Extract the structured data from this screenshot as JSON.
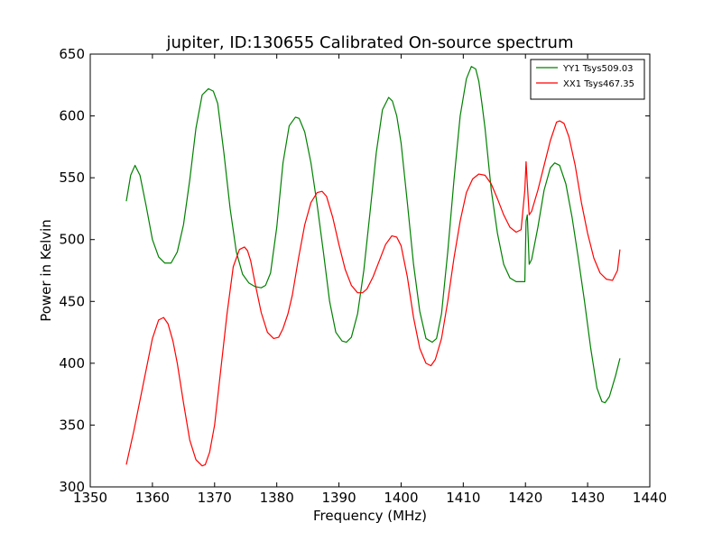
{
  "chart_data": {
    "type": "line",
    "title": "jupiter, ID:130655 Calibrated On-source spectrum",
    "xlabel": "Frequency (MHz)",
    "ylabel": "Power in Kelvin",
    "xlim": [
      1350,
      1440
    ],
    "ylim": [
      300,
      650
    ],
    "xticks": [
      1350,
      1360,
      1370,
      1380,
      1390,
      1400,
      1410,
      1420,
      1430,
      1440
    ],
    "yticks": [
      300,
      350,
      400,
      450,
      500,
      550,
      600,
      650
    ],
    "grid": false,
    "legend_position": "top-right",
    "series": [
      {
        "name": "YY1 Tsys509.03",
        "color": "#008000",
        "x": [
          1355.8,
          1356.5,
          1357.2,
          1358,
          1359,
          1360,
          1361,
          1362,
          1363,
          1364,
          1365,
          1366,
          1367,
          1368,
          1369,
          1369.8,
          1370.5,
          1371.5,
          1372.5,
          1373.5,
          1374.5,
          1375.5,
          1376.5,
          1377.5,
          1378.2,
          1379,
          1380,
          1381,
          1382,
          1383,
          1383.6,
          1384.5,
          1385.5,
          1386.5,
          1387.5,
          1388.5,
          1389.5,
          1390.5,
          1391.2,
          1392,
          1393,
          1394,
          1395,
          1396,
          1397,
          1398,
          1398.6,
          1399.3,
          1400,
          1401,
          1402,
          1403,
          1404,
          1405,
          1405.7,
          1406.5,
          1407.5,
          1408.5,
          1409.5,
          1410.5,
          1411.3,
          1412,
          1412.5,
          1413,
          1413.5,
          1414.5,
          1415.5,
          1416.5,
          1417.5,
          1418.5,
          1419.5,
          1419.9,
          1420.1,
          1420.3,
          1420.6,
          1421,
          1422,
          1423,
          1424,
          1424.7,
          1425.5,
          1426.5,
          1427.5,
          1428.5,
          1429.5,
          1430.5,
          1431.5,
          1432.3,
          1432.8,
          1433.5,
          1434.5,
          1435.2
        ],
        "y": [
          531,
          552,
          560,
          552,
          527,
          500,
          486,
          481,
          481,
          490,
          512,
          548,
          590,
          617,
          622,
          620,
          610,
          570,
          525,
          490,
          472,
          465,
          462,
          461,
          463,
          473,
          510,
          562,
          592,
          599,
          598,
          587,
          562,
          528,
          490,
          450,
          425,
          418,
          417,
          421,
          440,
          475,
          522,
          570,
          605,
          615,
          612,
          600,
          578,
          530,
          480,
          442,
          420,
          417,
          420,
          440,
          490,
          548,
          600,
          630,
          640,
          638,
          628,
          610,
          590,
          540,
          505,
          480,
          469,
          466,
          466,
          466,
          515,
          520,
          480,
          484,
          510,
          540,
          558,
          562,
          560,
          545,
          518,
          485,
          450,
          412,
          380,
          369,
          368,
          373,
          390,
          404
        ]
      },
      {
        "name": "XX1 Tsys467.35",
        "color": "#ff0000",
        "x": [
          1355.8,
          1357,
          1358,
          1359,
          1360,
          1361,
          1361.8,
          1362.5,
          1363.3,
          1364,
          1365,
          1366,
          1367,
          1368,
          1368.5,
          1369.2,
          1370,
          1371,
          1372,
          1373,
          1374,
          1374.8,
          1375.3,
          1375.8,
          1376.5,
          1377.5,
          1378.5,
          1379.5,
          1380.3,
          1381,
          1381.8,
          1382.5,
          1383.5,
          1384.5,
          1385.5,
          1386.5,
          1387.3,
          1388,
          1389,
          1390,
          1391,
          1392,
          1393,
          1393.8,
          1394.5,
          1395.5,
          1396.5,
          1397.5,
          1398.5,
          1399.3,
          1400,
          1401,
          1402,
          1403,
          1404,
          1404.8,
          1405.5,
          1406.5,
          1407.5,
          1408.5,
          1409.5,
          1410.5,
          1411.5,
          1412.5,
          1413.5,
          1414.5,
          1415.5,
          1416.5,
          1417.5,
          1418.5,
          1419.3,
          1419.9,
          1420.1,
          1420.3,
          1420.6,
          1421,
          1422,
          1423,
          1424,
          1425,
          1425.5,
          1426.2,
          1427,
          1428,
          1429,
          1430,
          1431,
          1432,
          1433,
          1434,
          1434.8,
          1435.2
        ],
        "y": [
          318,
          345,
          370,
          395,
          420,
          435,
          437,
          432,
          418,
          400,
          368,
          338,
          322,
          317,
          318,
          328,
          350,
          395,
          440,
          478,
          492,
          494,
          491,
          483,
          465,
          441,
          425,
          420,
          421,
          428,
          440,
          455,
          485,
          512,
          530,
          538,
          539,
          535,
          518,
          496,
          476,
          463,
          457,
          457,
          460,
          470,
          483,
          496,
          503,
          502,
          495,
          470,
          437,
          412,
          400,
          398,
          403,
          420,
          450,
          485,
          515,
          538,
          549,
          553,
          552,
          545,
          533,
          520,
          510,
          506,
          508,
          540,
          563,
          545,
          520,
          523,
          540,
          560,
          580,
          595,
          596,
          594,
          583,
          560,
          530,
          505,
          485,
          473,
          468,
          467,
          475,
          492
        ]
      }
    ]
  }
}
